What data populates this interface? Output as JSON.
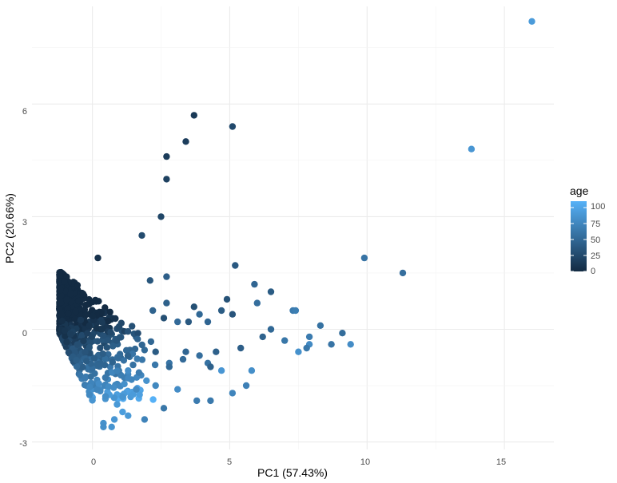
{
  "chart_data": {
    "type": "scatter",
    "title": "",
    "xlabel": "PC1 (57.43%)",
    "ylabel": "PC2 (20.66%)",
    "xlim": [
      -2.2,
      16.8
    ],
    "ylim": [
      -3.2,
      8.6
    ],
    "x_ticks": [
      0,
      5,
      10,
      15
    ],
    "y_ticks": [
      -3,
      0,
      3,
      6
    ],
    "grid": true,
    "legend": {
      "title": "age",
      "position": "right",
      "type": "colorbar",
      "range": [
        0,
        110
      ],
      "ticks": [
        0,
        25,
        50,
        75,
        100
      ],
      "color_low": "#132b43",
      "color_high": "#56b1f7"
    },
    "points": [
      {
        "x": 16.0,
        "y": 8.2,
        "age": 92
      },
      {
        "x": 13.8,
        "y": 4.8,
        "age": 88
      },
      {
        "x": 3.7,
        "y": 5.7,
        "age": 12
      },
      {
        "x": 5.1,
        "y": 5.4,
        "age": 25
      },
      {
        "x": 3.4,
        "y": 5.0,
        "age": 15
      },
      {
        "x": 2.7,
        "y": 4.6,
        "age": 14
      },
      {
        "x": 2.7,
        "y": 4.0,
        "age": 18
      },
      {
        "x": 2.5,
        "y": 3.0,
        "age": 22
      },
      {
        "x": 1.8,
        "y": 2.5,
        "age": 26
      },
      {
        "x": 0.2,
        "y": 1.9,
        "age": 5
      },
      {
        "x": 5.2,
        "y": 1.7,
        "age": 38
      },
      {
        "x": 9.9,
        "y": 1.9,
        "age": 60
      },
      {
        "x": 11.3,
        "y": 1.5,
        "age": 55
      },
      {
        "x": 2.7,
        "y": 1.4,
        "age": 42
      },
      {
        "x": 2.1,
        "y": 1.3,
        "age": 35
      },
      {
        "x": 5.9,
        "y": 1.2,
        "age": 48
      },
      {
        "x": 6.5,
        "y": 1.0,
        "age": 40
      },
      {
        "x": 4.9,
        "y": 0.8,
        "age": 32
      },
      {
        "x": 6.0,
        "y": 0.7,
        "age": 55
      },
      {
        "x": 2.7,
        "y": 0.7,
        "age": 44
      },
      {
        "x": 3.7,
        "y": 0.6,
        "age": 30
      },
      {
        "x": 7.3,
        "y": 0.5,
        "age": 65
      },
      {
        "x": 7.4,
        "y": 0.5,
        "age": 68
      },
      {
        "x": 4.7,
        "y": 0.5,
        "age": 40
      },
      {
        "x": 5.1,
        "y": 0.4,
        "age": 34
      },
      {
        "x": 3.9,
        "y": 0.4,
        "age": 50
      },
      {
        "x": 2.2,
        "y": 0.5,
        "age": 46
      },
      {
        "x": 2.6,
        "y": 0.3,
        "age": 30
      },
      {
        "x": 3.5,
        "y": 0.2,
        "age": 38
      },
      {
        "x": 4.2,
        "y": 0.2,
        "age": 48
      },
      {
        "x": 3.1,
        "y": 0.2,
        "age": 52
      },
      {
        "x": 8.3,
        "y": 0.1,
        "age": 58
      },
      {
        "x": 6.5,
        "y": 0.0,
        "age": 50
      },
      {
        "x": 9.1,
        "y": -0.1,
        "age": 54
      },
      {
        "x": 6.2,
        "y": -0.2,
        "age": 46
      },
      {
        "x": 7.9,
        "y": -0.2,
        "age": 66
      },
      {
        "x": 7.0,
        "y": -0.3,
        "age": 62
      },
      {
        "x": 8.7,
        "y": -0.4,
        "age": 60
      },
      {
        "x": 9.4,
        "y": -0.4,
        "age": 80
      },
      {
        "x": 7.9,
        "y": -0.4,
        "age": 78
      },
      {
        "x": 7.8,
        "y": -0.5,
        "age": 63
      },
      {
        "x": 5.4,
        "y": -0.5,
        "age": 42
      },
      {
        "x": 7.5,
        "y": -0.6,
        "age": 84
      },
      {
        "x": 3.4,
        "y": -0.6,
        "age": 48
      },
      {
        "x": 4.5,
        "y": -0.6,
        "age": 44
      },
      {
        "x": 3.9,
        "y": -0.7,
        "age": 55
      },
      {
        "x": 3.3,
        "y": -0.8,
        "age": 52
      },
      {
        "x": 2.3,
        "y": -0.6,
        "age": 40
      },
      {
        "x": 2.8,
        "y": -0.9,
        "age": 60
      },
      {
        "x": 4.2,
        "y": -0.9,
        "age": 58
      },
      {
        "x": 4.3,
        "y": -1.0,
        "age": 44
      },
      {
        "x": 2.8,
        "y": -1.0,
        "age": 50
      },
      {
        "x": 4.7,
        "y": -1.1,
        "age": 88
      },
      {
        "x": 5.8,
        "y": -1.1,
        "age": 82
      },
      {
        "x": 2.3,
        "y": -1.5,
        "age": 76
      },
      {
        "x": 3.1,
        "y": -1.6,
        "age": 80
      },
      {
        "x": 5.6,
        "y": -1.5,
        "age": 70
      },
      {
        "x": 5.1,
        "y": -1.7,
        "age": 74
      },
      {
        "x": 3.8,
        "y": -1.9,
        "age": 66
      },
      {
        "x": 4.3,
        "y": -1.9,
        "age": 64
      },
      {
        "x": 2.6,
        "y": -2.1,
        "age": 62
      },
      {
        "x": 1.9,
        "y": -2.4,
        "age": 72
      },
      {
        "x": 1.3,
        "y": -2.3,
        "age": 90
      },
      {
        "x": 0.8,
        "y": -2.4,
        "age": 88
      },
      {
        "x": 0.4,
        "y": -2.5,
        "age": 84
      },
      {
        "x": 0.4,
        "y": -2.6,
        "age": 82
      },
      {
        "x": 0.7,
        "y": -2.6,
        "age": 86
      },
      {
        "x": 1.1,
        "y": -2.2,
        "age": 94
      },
      {
        "x": 0.9,
        "y": -2.0,
        "age": 90
      },
      {
        "x": 1.1,
        "y": -1.8,
        "age": 86
      },
      {
        "x": 1.6,
        "y": -1.6,
        "age": 78
      },
      {
        "x": 1.3,
        "y": -1.1,
        "age": 80
      }
    ],
    "cluster": {
      "note": "dense overlapping group",
      "x_range": [
        -1.2,
        2.6
      ],
      "y_range": [
        -1.9,
        1.6
      ],
      "count": 700
    }
  },
  "legend": {
    "title": "age",
    "labels": [
      "100",
      "75",
      "50",
      "25",
      "0"
    ]
  },
  "axes": {
    "x_tick_labels": [
      "0",
      "5",
      "10",
      "15"
    ],
    "y_tick_labels": [
      "-3",
      "0",
      "3",
      "6"
    ],
    "xlabel": "PC1 (57.43%)",
    "ylabel": "PC2 (20.66%)"
  }
}
